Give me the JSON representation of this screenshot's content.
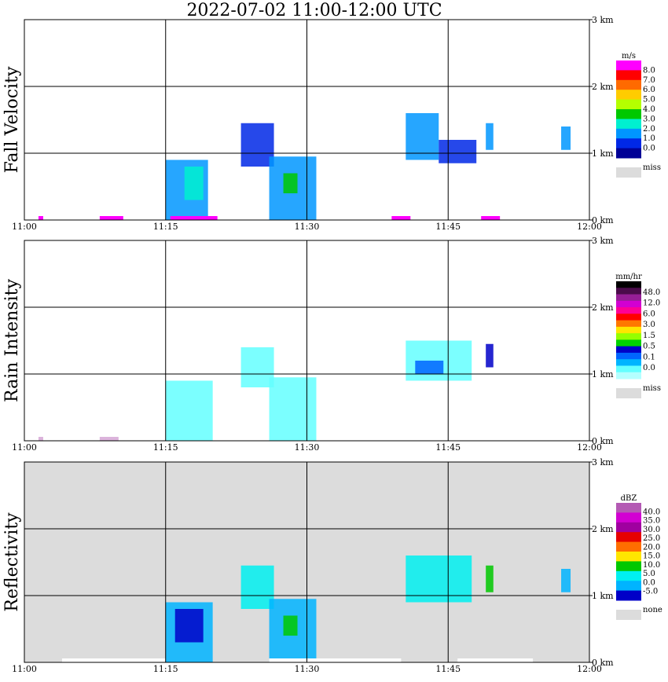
{
  "title": "2022-07-02   11:00-12:00 UTC",
  "chart_data": [
    {
      "type": "heatmap",
      "ylabel": "Fall Velocity",
      "x_ticks": [
        "11:00",
        "11:15",
        "11:30",
        "11:45",
        "12:00"
      ],
      "y_ticks": [
        "0 km",
        "1 km",
        "2 km",
        "3 km"
      ],
      "xlim": [
        "11:00",
        "12:00"
      ],
      "ylim_km": [
        0,
        3.0
      ],
      "background": "#ffffff",
      "colorbar": {
        "unit": "m/s",
        "levels": [
          "8.0",
          "7.0",
          "6.0",
          "5.0",
          "4.0",
          "3.0",
          "2.0",
          "1.0",
          "0.0"
        ],
        "colors": [
          "#ff00ff",
          "#ff0000",
          "#ff6a00",
          "#ffcc00",
          "#b5ff00",
          "#00c800",
          "#00f0d0",
          "#0096ff",
          "#0028e6",
          "#000096"
        ],
        "missing_label": "miss",
        "missing_color": "#dcdcdc"
      },
      "echoes": [
        {
          "t": [
            15.0,
            19.5
          ],
          "h": [
            0.0,
            0.9
          ],
          "color": "#0096ff"
        },
        {
          "t": [
            17.0,
            19.0
          ],
          "h": [
            0.3,
            0.8
          ],
          "color": "#00f0d0"
        },
        {
          "t": [
            23.0,
            26.5
          ],
          "h": [
            0.8,
            1.45
          ],
          "color": "#0028e6"
        },
        {
          "t": [
            26.0,
            31.0
          ],
          "h": [
            0.0,
            0.95
          ],
          "color": "#0096ff"
        },
        {
          "t": [
            27.5,
            29.0
          ],
          "h": [
            0.4,
            0.7
          ],
          "color": "#00c800"
        },
        {
          "t": [
            40.5,
            44.0
          ],
          "h": [
            0.9,
            1.6
          ],
          "color": "#0096ff"
        },
        {
          "t": [
            44.0,
            48.0
          ],
          "h": [
            0.85,
            1.2
          ],
          "color": "#0028e6"
        },
        {
          "t": [
            49.0,
            49.8
          ],
          "h": [
            1.05,
            1.45
          ],
          "color": "#0096ff"
        },
        {
          "t": [
            57.0,
            58.0
          ],
          "h": [
            1.05,
            1.4
          ],
          "color": "#0096ff"
        }
      ],
      "surface_marks": [
        {
          "t": [
            1.5,
            2.0
          ],
          "color": "#ff00ff"
        },
        {
          "t": [
            8.0,
            10.5
          ],
          "color": "#ff00ff"
        },
        {
          "t": [
            15.5,
            20.5
          ],
          "color": "#ff00ff"
        },
        {
          "t": [
            39.0,
            41.0
          ],
          "color": "#ff00ff"
        },
        {
          "t": [
            48.5,
            50.5
          ],
          "color": "#ff00ff"
        }
      ]
    },
    {
      "type": "heatmap",
      "ylabel": "Rain Intensity",
      "x_ticks": [
        "11:00",
        "11:15",
        "11:30",
        "11:45",
        "12:00"
      ],
      "y_ticks": [
        "0 km",
        "1 km",
        "2 km",
        "3 km"
      ],
      "xlim": [
        "11:00",
        "12:00"
      ],
      "ylim_km": [
        0,
        3.0
      ],
      "background": "#ffffff",
      "colorbar": {
        "unit": "mm/hr",
        "levels": [
          "48.0",
          "12.0",
          "6.0",
          "3.0",
          "1.5",
          "0.5",
          "0.1",
          "0.0"
        ],
        "colors": [
          "#000000",
          "#4b0b4b",
          "#961e96",
          "#d200d2",
          "#ff0096",
          "#ff0000",
          "#ff7800",
          "#ffe600",
          "#96ff00",
          "#00d200",
          "#0000c8",
          "#0064ff",
          "#00b4ff",
          "#64ffff",
          "#b4ffff"
        ],
        "missing_label": "miss",
        "missing_color": "#dcdcdc"
      },
      "echoes": [
        {
          "t": [
            15.0,
            20.0
          ],
          "h": [
            0.0,
            0.9
          ],
          "color": "#64ffff"
        },
        {
          "t": [
            23.0,
            26.5
          ],
          "h": [
            0.8,
            1.4
          ],
          "color": "#64ffff"
        },
        {
          "t": [
            26.0,
            31.0
          ],
          "h": [
            0.0,
            0.95
          ],
          "color": "#64ffff"
        },
        {
          "t": [
            40.5,
            47.5
          ],
          "h": [
            0.9,
            1.5
          ],
          "color": "#64ffff"
        },
        {
          "t": [
            41.5,
            44.5
          ],
          "h": [
            1.0,
            1.2
          ],
          "color": "#0064ff"
        },
        {
          "t": [
            49.0,
            49.8
          ],
          "h": [
            1.1,
            1.45
          ],
          "color": "#0000c8"
        }
      ],
      "surface_marks": [
        {
          "t": [
            1.5,
            2.0
          ],
          "color": "#dcb4dc"
        },
        {
          "t": [
            8.0,
            10.0
          ],
          "color": "#dcb4dc"
        }
      ]
    },
    {
      "type": "heatmap",
      "ylabel": "Reflectivity",
      "x_ticks": [
        "11:00",
        "11:15",
        "11:30",
        "11:45",
        "12:00"
      ],
      "y_ticks": [
        "0 km",
        "1 km",
        "2 km",
        "3 km"
      ],
      "xlim": [
        "11:00",
        "12:00"
      ],
      "ylim_km": [
        0,
        3.0
      ],
      "background": "#dcdcdc",
      "colorbar": {
        "unit": "dBZ",
        "levels": [
          "40.0",
          "35.0",
          "30.0",
          "25.0",
          "20.0",
          "15.0",
          "10.0",
          "5.0",
          "0.0",
          "-5.0"
        ],
        "colors": [
          "#b45ab4",
          "#d200d2",
          "#a000a0",
          "#e60000",
          "#ff6e00",
          "#ffe600",
          "#00c800",
          "#00f0f0",
          "#00b4ff",
          "#0000c8"
        ],
        "missing_label": "none",
        "missing_color": "#dcdcdc"
      },
      "echoes": [
        {
          "t": [
            15.0,
            20.0
          ],
          "h": [
            0.0,
            0.9
          ],
          "color": "#00b4ff"
        },
        {
          "t": [
            16.0,
            19.0
          ],
          "h": [
            0.3,
            0.8
          ],
          "color": "#0000c8"
        },
        {
          "t": [
            23.0,
            26.5
          ],
          "h": [
            0.8,
            1.45
          ],
          "color": "#00f0f0"
        },
        {
          "t": [
            26.0,
            31.0
          ],
          "h": [
            0.0,
            0.95
          ],
          "color": "#00b4ff"
        },
        {
          "t": [
            27.5,
            29.0
          ],
          "h": [
            0.4,
            0.7
          ],
          "color": "#00c800"
        },
        {
          "t": [
            40.5,
            47.5
          ],
          "h": [
            0.9,
            1.6
          ],
          "color": "#00f0f0"
        },
        {
          "t": [
            49.0,
            49.8
          ],
          "h": [
            1.05,
            1.45
          ],
          "color": "#00c800"
        },
        {
          "t": [
            57.0,
            58.0
          ],
          "h": [
            1.05,
            1.4
          ],
          "color": "#00b4ff"
        }
      ],
      "surface_marks": [
        {
          "t": [
            4.0,
            15.0
          ],
          "color": "#ffffff"
        },
        {
          "t": [
            26.0,
            40.0
          ],
          "color": "#ffffff"
        },
        {
          "t": [
            46.0,
            54.0
          ],
          "color": "#ffffff"
        }
      ]
    }
  ]
}
